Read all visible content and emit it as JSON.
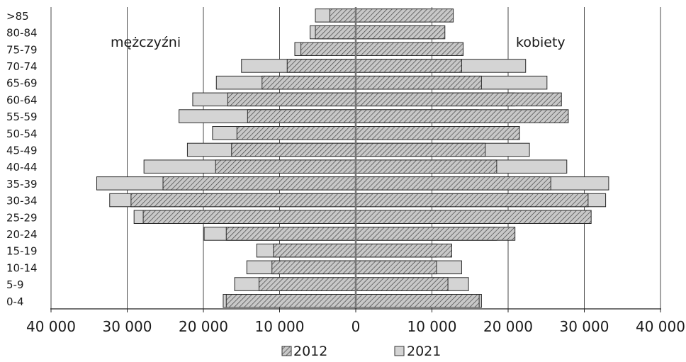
{
  "chart_data": {
    "type": "bar",
    "orientation": "horizontal",
    "subtype": "population-pyramid",
    "categories": [
      "0-4",
      "5-9",
      "10-14",
      "15-19",
      "20-24",
      "25-29",
      "30-34",
      "35-39",
      "40-44",
      "45-49",
      "50-54",
      "55-59",
      "60-64",
      "65-69",
      "70-74",
      "75-79",
      "80-84",
      ">85"
    ],
    "left_label": "mężczyźni",
    "right_label": "kobiety",
    "series": [
      {
        "name": "2012",
        "pattern": "diagonal-hatch",
        "color": "#c9c9c9",
        "men": [
          17000,
          12700,
          11000,
          10800,
          17000,
          27900,
          29500,
          25300,
          18400,
          16300,
          15600,
          14200,
          16800,
          12300,
          9000,
          7200,
          5300,
          3400
        ],
        "women": [
          16200,
          12100,
          10600,
          12600,
          20900,
          30900,
          30500,
          25600,
          18500,
          17000,
          21500,
          27900,
          27000,
          16500,
          13900,
          14100,
          11700,
          12800
        ]
      },
      {
        "name": "2021",
        "pattern": "solid",
        "color": "#d4d4d4",
        "men": [
          17400,
          15900,
          14300,
          13000,
          19900,
          29100,
          32300,
          34000,
          27800,
          22100,
          18800,
          23200,
          21400,
          18300,
          15000,
          8000,
          6000,
          5300
        ],
        "women": [
          16500,
          14800,
          13900,
          10600,
          18500,
          30600,
          32800,
          33200,
          27700,
          22800,
          16400,
          16100,
          20900,
          25100,
          22300,
          11900,
          10500,
          9200
        ]
      }
    ],
    "x_ticks": [
      "40 000",
      "30 000",
      "20 000",
      "10 000",
      "0",
      "10 000",
      "20 000",
      "30 000",
      "40 000"
    ],
    "xlim": [
      -40000,
      40000
    ],
    "grid": true,
    "legend_position": "bottom-center"
  }
}
